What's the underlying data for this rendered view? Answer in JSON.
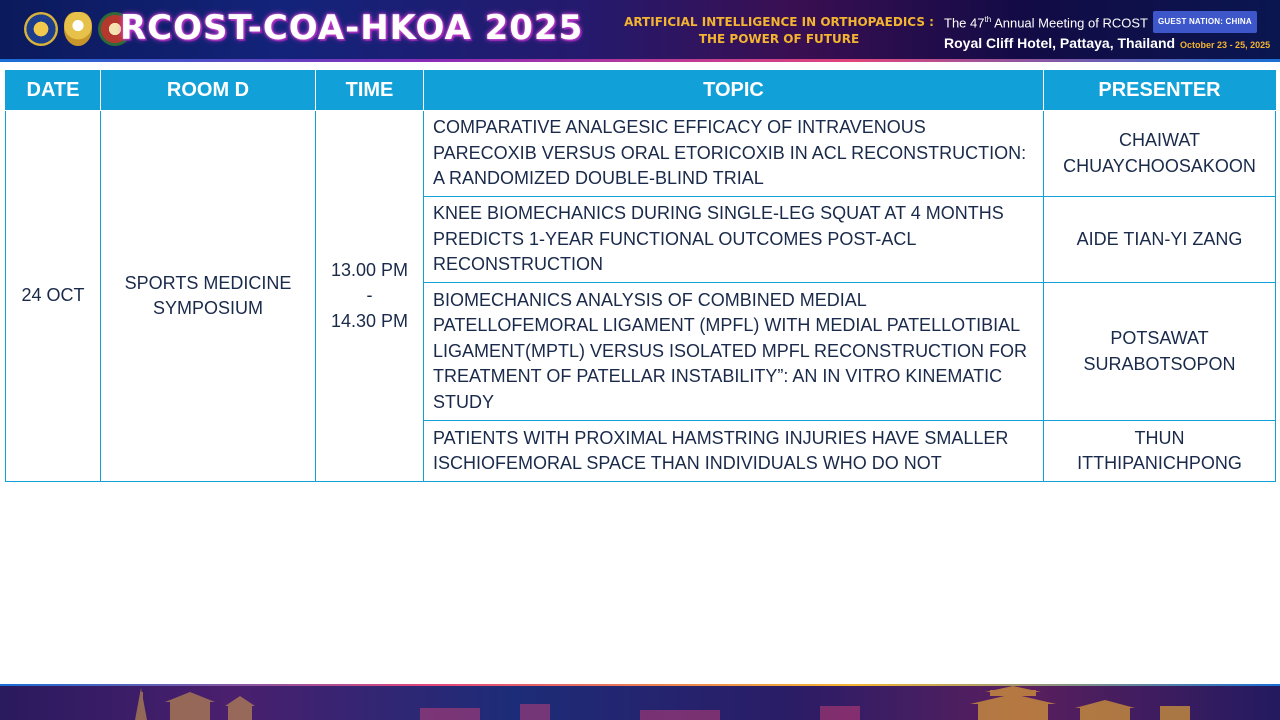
{
  "header": {
    "logos": [
      "rcost-seal-logo",
      "crest-logo",
      "society-seal-logo"
    ],
    "title": "RCOST-COA-HKOA 2025",
    "theme_line1": "ARTIFICIAL INTELLIGENCE IN ORTHOPAEDICS :",
    "theme_line2": "THE POWER OF FUTURE",
    "meeting_prefix": "The 47",
    "meeting_ordinal": "th",
    "meeting_suffix": "Annual Meeting of RCOST",
    "guest_badge": "GUEST NATION: CHINA",
    "venue": "Royal Cliff Hotel, Pattaya, Thailand",
    "dates": "October 23 - 25, 2025"
  },
  "table": {
    "columns": [
      "DATE",
      "ROOM D",
      "TIME",
      "TOPIC",
      "PRESENTER"
    ],
    "date": "24 OCT",
    "room": "SPORTS MEDICINE SYMPOSIUM",
    "time_start": "13.00 PM",
    "time_sep": "-",
    "time_end": "14.30 PM",
    "rows": [
      {
        "topic": "COMPARATIVE ANALGESIC EFFICACY OF INTRAVENOUS PARECOXIB VERSUS ORAL ETORICOXIB IN ACL RECONSTRUCTION: A RANDOMIZED DOUBLE-BLIND TRIAL",
        "presenter": "CHAIWAT CHUAYCHOOSAKOON"
      },
      {
        "topic": "KNEE BIOMECHANICS DURING SINGLE-LEG SQUAT AT 4 MONTHS PREDICTS 1-YEAR FUNCTIONAL OUTCOMES POST-ACL RECONSTRUCTION",
        "presenter": "AIDE TIAN-YI ZANG"
      },
      {
        "topic": "BIOMECHANICS ANALYSIS OF COMBINED MEDIAL PATELLOFEMORAL LIGAMENT (MPFL) WITH MEDIAL PATELLOTIBIAL LIGAMENT(MPTL) VERSUS ISOLATED MPFL RECONSTRUCTION FOR TREATMENT OF PATELLAR INSTABILITY”: AN IN VITRO KINEMATIC STUDY",
        "presenter": "POTSAWAT SURABOTSOPON"
      },
      {
        "topic": "PATIENTS WITH PROXIMAL HAMSTRING INJURIES HAVE SMALLER ISCHIOFEMORAL SPACE THAN INDIVIDUALS WHO DO NOT",
        "presenter": "THUN ITTHIPANICHPONG"
      }
    ]
  },
  "colors": {
    "header_accent": "#12a0d8",
    "body_text": "#1a2a4a",
    "theme_gold": "#f3b431"
  }
}
